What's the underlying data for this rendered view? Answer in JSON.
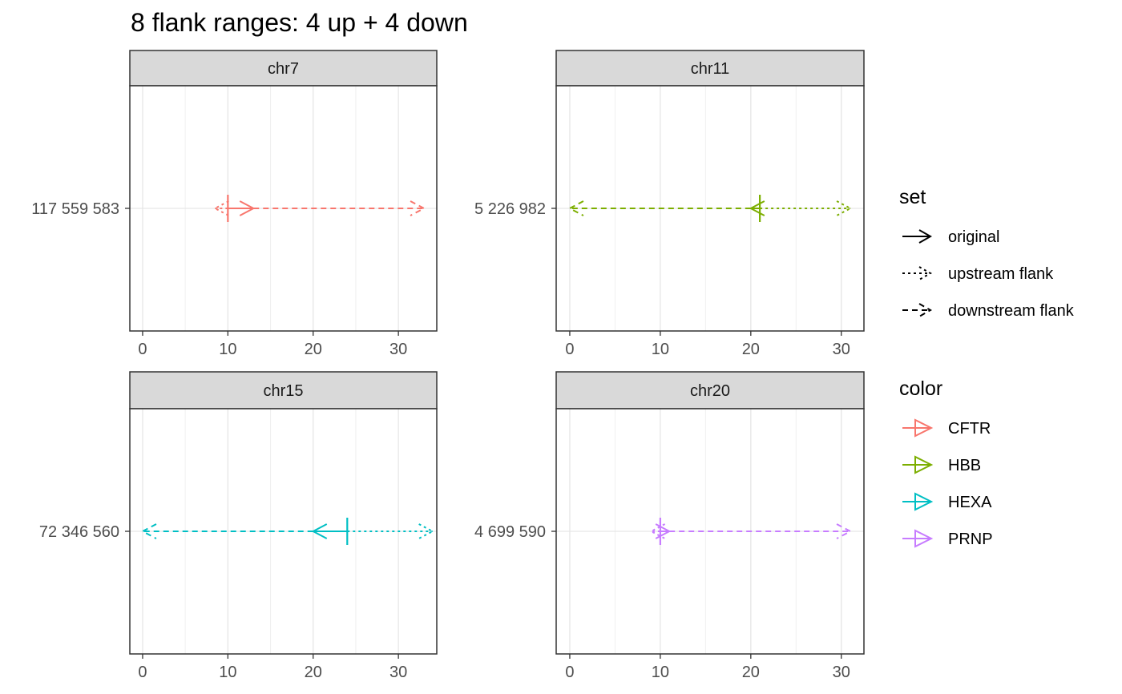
{
  "title": "8 flank ranges: 4 up + 4 down",
  "chart_data": {
    "type": "line",
    "title": "8 flank ranges: 4 up + 4 down",
    "grid": true,
    "facets": [
      {
        "strip": "chr7",
        "y_label": "117 559 583",
        "xlim": [
          -1.5,
          34.5
        ],
        "x_ticks": [
          0,
          10,
          20,
          30
        ],
        "ranges": [
          {
            "set": "original",
            "color": "CFTR",
            "start": 10,
            "end": 13
          },
          {
            "set": "upstream flank",
            "color": "CFTR",
            "start": 10,
            "end": 8.5
          },
          {
            "set": "downstream flank",
            "color": "CFTR",
            "start": 13,
            "end": 33
          }
        ]
      },
      {
        "strip": "chr11",
        "y_label": "5 226 982",
        "xlim": [
          -1.5,
          32.5
        ],
        "x_ticks": [
          0,
          10,
          20,
          30
        ],
        "ranges": [
          {
            "set": "original",
            "color": "HBB",
            "start": 21,
            "end": 20
          },
          {
            "set": "upstream flank",
            "color": "HBB",
            "start": 21,
            "end": 31
          },
          {
            "set": "downstream flank",
            "color": "HBB",
            "start": 20,
            "end": 0
          }
        ]
      },
      {
        "strip": "chr15",
        "y_label": "72 346 560",
        "xlim": [
          -1.5,
          34.5
        ],
        "x_ticks": [
          0,
          10,
          20,
          30
        ],
        "ranges": [
          {
            "set": "original",
            "color": "HEXA",
            "start": 24,
            "end": 20
          },
          {
            "set": "upstream flank",
            "color": "HEXA",
            "start": 24,
            "end": 34
          },
          {
            "set": "downstream flank",
            "color": "HEXA",
            "start": 20,
            "end": 0
          }
        ]
      },
      {
        "strip": "chr20",
        "y_label": "4 699 590",
        "xlim": [
          -1.5,
          32.5
        ],
        "x_ticks": [
          0,
          10,
          20,
          30
        ],
        "ranges": [
          {
            "set": "original",
            "color": "PRNP",
            "start": 10,
            "end": 11
          },
          {
            "set": "upstream flank",
            "color": "PRNP",
            "start": 10,
            "end": 9
          },
          {
            "set": "downstream flank",
            "color": "PRNP",
            "start": 11,
            "end": 31
          }
        ]
      }
    ],
    "legend_set": {
      "title": "set",
      "entries": [
        {
          "label": "original",
          "linetype": "solid"
        },
        {
          "label": "upstream flank",
          "linetype": "dotted"
        },
        {
          "label": "downstream flank",
          "linetype": "dashed"
        }
      ]
    },
    "legend_color": {
      "title": "color",
      "entries": [
        {
          "label": "CFTR",
          "color": "#F8766D"
        },
        {
          "label": "HBB",
          "color": "#7CAE00"
        },
        {
          "label": "HEXA",
          "color": "#00BFC4"
        },
        {
          "label": "PRNP",
          "color": "#C77CFF"
        }
      ]
    },
    "legend_placement": "right"
  }
}
